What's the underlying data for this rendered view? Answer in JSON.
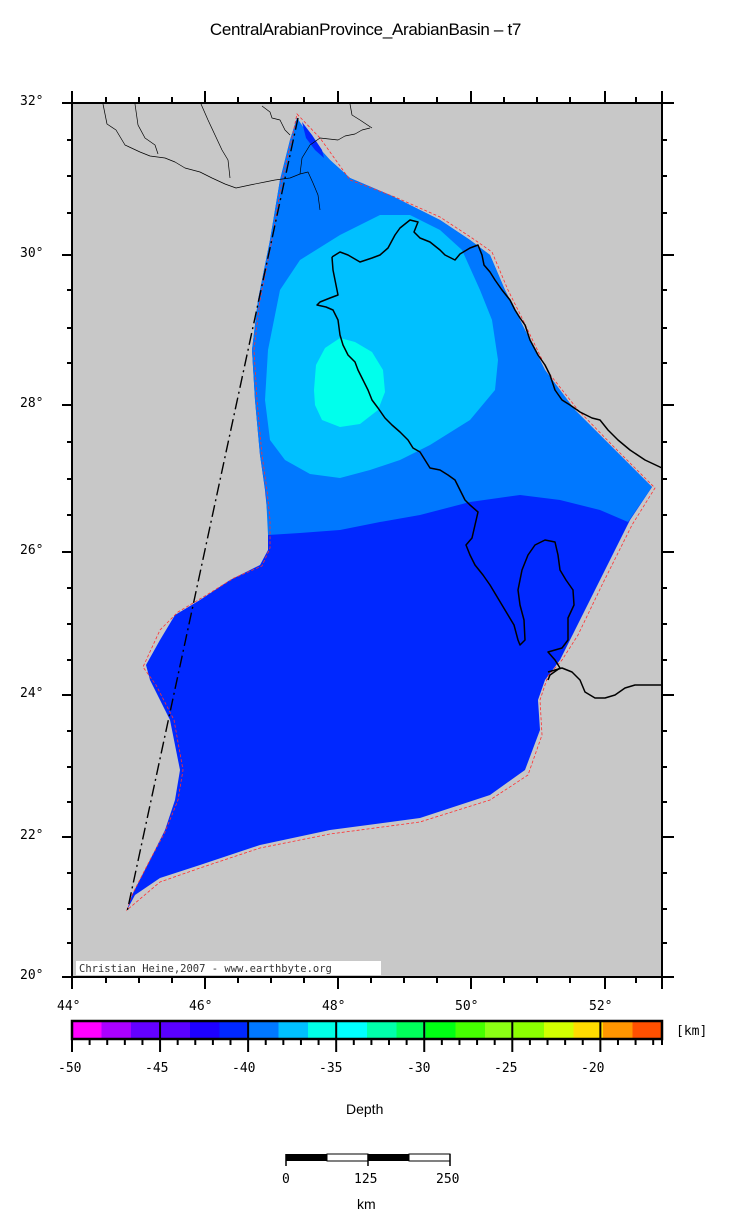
{
  "title": "CentralArabianProvince_ArabianBasin – t7",
  "map": {
    "frame": {
      "lon_min": 44,
      "lon_max": 53,
      "lat_min": 20,
      "lat_max": 32
    },
    "background_color": "#c8c8c8",
    "lat_labels": [
      {
        "value": 32,
        "text": "32°"
      },
      {
        "value": 30,
        "text": "30°"
      },
      {
        "value": 28,
        "text": "28°"
      },
      {
        "value": 26,
        "text": "26°"
      },
      {
        "value": 24,
        "text": "24°"
      },
      {
        "value": 22,
        "text": "22°"
      },
      {
        "value": 20,
        "text": "20°"
      }
    ],
    "lon_labels": [
      {
        "value": 44,
        "text": "44°"
      },
      {
        "value": 46,
        "text": "46°"
      },
      {
        "value": 48,
        "text": "48°"
      },
      {
        "value": 50,
        "text": "50°"
      },
      {
        "value": 52,
        "text": "52°"
      }
    ],
    "credit": "Christian Heine,2007 - www.earthbyte.org",
    "depth_zones": [
      {
        "name": "deep",
        "range_km": [
          -42.5,
          -40
        ],
        "color": "#0028ff"
      },
      {
        "name": "mid",
        "range_km": [
          -40,
          -37.5
        ],
        "color": "#0078ff"
      },
      {
        "name": "shallow",
        "range_km": [
          -37.5,
          -35
        ],
        "color": "#00c0ff"
      },
      {
        "name": "shallowest",
        "range_km": [
          -35,
          -32.5
        ],
        "color": "#00ffec"
      }
    ],
    "province_outline_color": "#ff3030"
  },
  "colorbar": {
    "label": "Depth",
    "unit": "[km]",
    "min": -50,
    "max": -16.5,
    "tick_labels": [
      "-50",
      "-45",
      "-40",
      "-35",
      "-30",
      "-25",
      "-20"
    ],
    "colors": [
      "#ff00ff",
      "#aa00ff",
      "#6400ff",
      "#5a00ff",
      "#1e00ff",
      "#0028ff",
      "#0078ff",
      "#00c0ff",
      "#00ffe6",
      "#00ffff",
      "#00ffaa",
      "#00ff5a",
      "#00ff14",
      "#46ff00",
      "#8cff14",
      "#8cff00",
      "#d2ff00",
      "#ffdc00",
      "#ff9600",
      "#ff5000"
    ]
  },
  "scale_bar": {
    "labels": [
      "0",
      "125",
      "250"
    ],
    "unit": "km"
  }
}
